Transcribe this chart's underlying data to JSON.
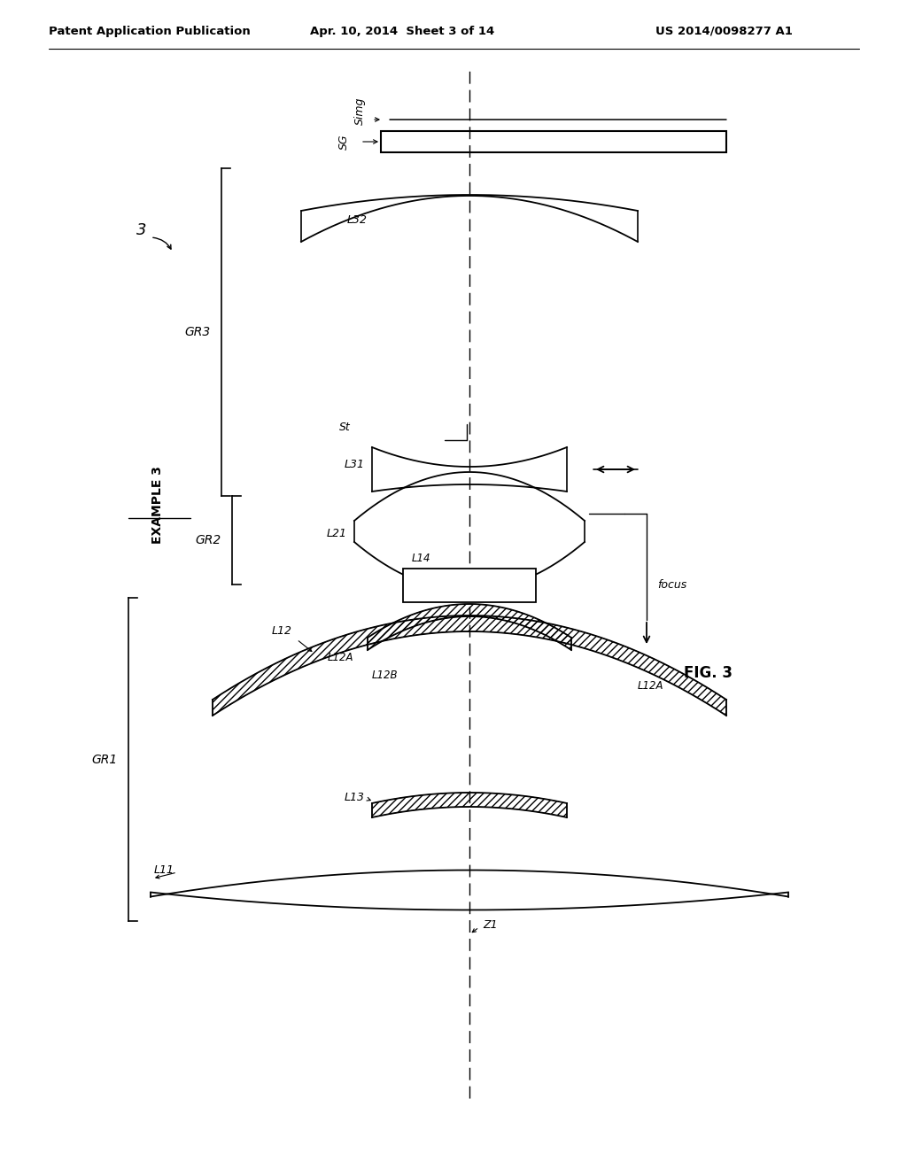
{
  "title_left": "Patent Application Publication",
  "title_mid": "Apr. 10, 2014  Sheet 3 of 14",
  "title_right": "US 2014/0098277 A1",
  "fig_label": "FIG. 3",
  "example_label": "EXAMPLE 3",
  "background": "#ffffff"
}
